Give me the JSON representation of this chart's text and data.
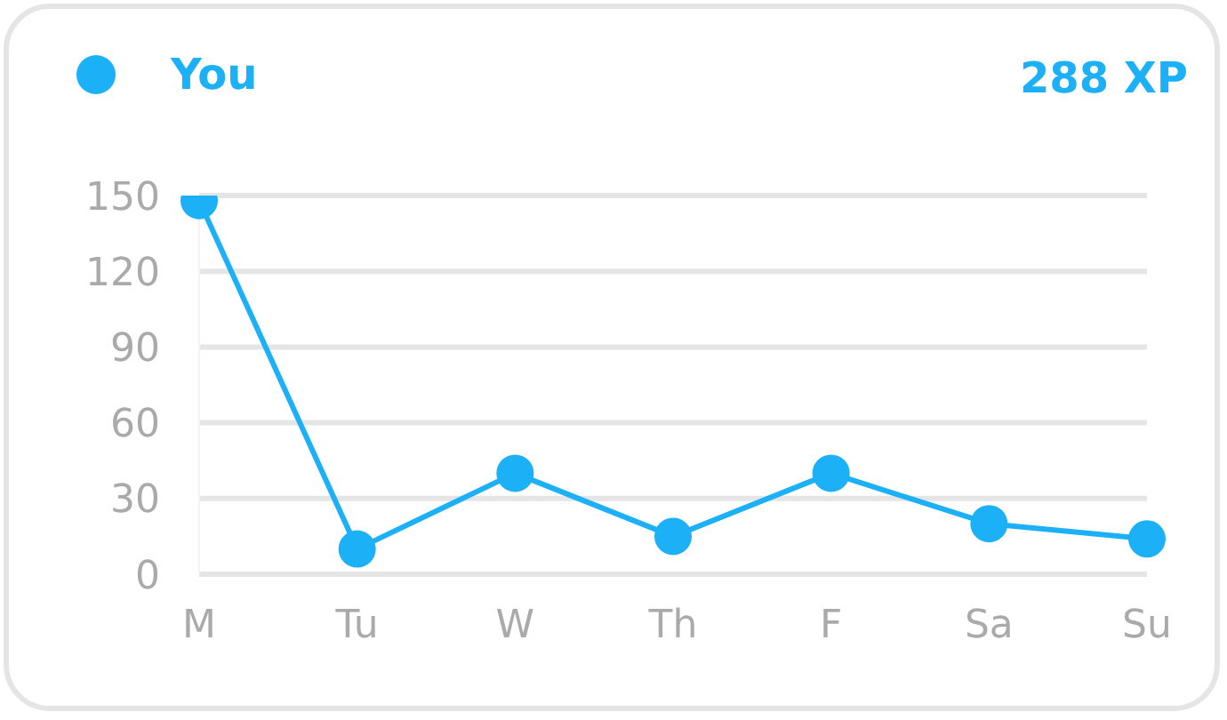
{
  "chart_data": {
    "type": "line",
    "categories": [
      "M",
      "Tu",
      "W",
      "Th",
      "F",
      "Sa",
      "Su"
    ],
    "series": [
      {
        "name": "You",
        "color": "#1cb0f6",
        "values": [
          148,
          10,
          40,
          15,
          40,
          20,
          14
        ]
      }
    ],
    "ylim": [
      0,
      150
    ],
    "yticks": [
      0,
      30,
      60,
      90,
      120,
      150
    ],
    "grid": "y",
    "legend": "top left",
    "marker": "circle",
    "line_style": "solid",
    "annotations": [
      "288 XP"
    ]
  }
}
